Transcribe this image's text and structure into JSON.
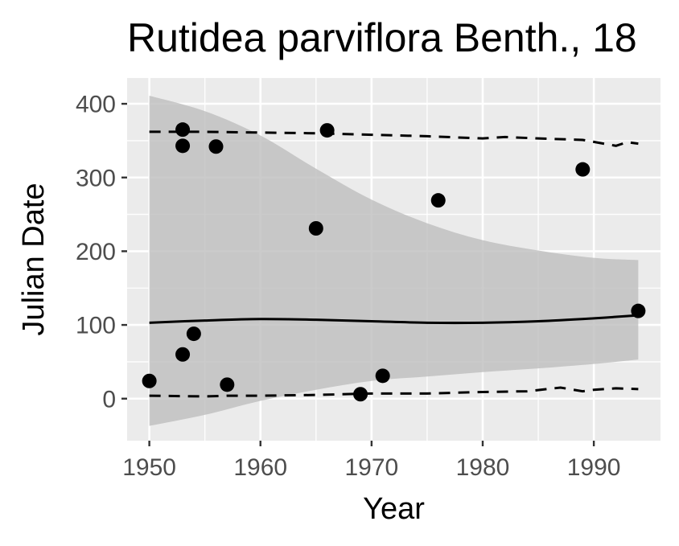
{
  "chart_data": {
    "type": "scatter",
    "title": "Rutidea parviflora Benth., 18",
    "xlabel": "Year",
    "ylabel": "Julian Date",
    "xlim": [
      1948.0,
      1996.0
    ],
    "ylim": [
      -57,
      435
    ],
    "x_ticks": [
      1950,
      1960,
      1970,
      1980,
      1990
    ],
    "x_tick_labels": [
      "1950",
      "1960",
      "1970",
      "1980",
      "1990"
    ],
    "y_ticks": [
      0,
      100,
      200,
      300,
      400
    ],
    "y_tick_labels": [
      "0",
      "100",
      "200",
      "300",
      "400"
    ],
    "grid": true,
    "legend": "none",
    "points": [
      {
        "x": 1950,
        "y": 24
      },
      {
        "x": 1953,
        "y": 365
      },
      {
        "x": 1953,
        "y": 343
      },
      {
        "x": 1953,
        "y": 60
      },
      {
        "x": 1954,
        "y": 88
      },
      {
        "x": 1956,
        "y": 342
      },
      {
        "x": 1957,
        "y": 19
      },
      {
        "x": 1965,
        "y": 231
      },
      {
        "x": 1966,
        "y": 364
      },
      {
        "x": 1969,
        "y": 6
      },
      {
        "x": 1971,
        "y": 31
      },
      {
        "x": 1976,
        "y": 269
      },
      {
        "x": 1989,
        "y": 311
      },
      {
        "x": 1994,
        "y": 119
      }
    ],
    "fit_line": [
      {
        "x": 1950,
        "y": 103
      },
      {
        "x": 1955,
        "y": 106
      },
      {
        "x": 1960,
        "y": 108
      },
      {
        "x": 1965,
        "y": 107
      },
      {
        "x": 1970,
        "y": 105
      },
      {
        "x": 1975,
        "y": 103
      },
      {
        "x": 1980,
        "y": 103
      },
      {
        "x": 1985,
        "y": 105
      },
      {
        "x": 1990,
        "y": 109
      },
      {
        "x": 1994,
        "y": 113
      }
    ],
    "ribbon": [
      {
        "x": 1950,
        "upper": 411,
        "lower": -37
      },
      {
        "x": 1955,
        "upper": 390,
        "lower": -22
      },
      {
        "x": 1960,
        "upper": 357,
        "lower": -3
      },
      {
        "x": 1965,
        "upper": 312,
        "lower": 12
      },
      {
        "x": 1970,
        "upper": 270,
        "lower": 24
      },
      {
        "x": 1975,
        "upper": 238,
        "lower": 30
      },
      {
        "x": 1980,
        "upper": 215,
        "lower": 36
      },
      {
        "x": 1985,
        "upper": 201,
        "lower": 41
      },
      {
        "x": 1990,
        "upper": 191,
        "lower": 47
      },
      {
        "x": 1994,
        "upper": 188,
        "lower": 53
      }
    ],
    "upper_dashed": [
      {
        "x": 1950,
        "y": 362
      },
      {
        "x": 1955,
        "y": 362
      },
      {
        "x": 1960,
        "y": 361
      },
      {
        "x": 1965,
        "y": 360
      },
      {
        "x": 1970,
        "y": 358
      },
      {
        "x": 1975,
        "y": 356
      },
      {
        "x": 1980,
        "y": 353
      },
      {
        "x": 1982,
        "y": 355
      },
      {
        "x": 1985,
        "y": 353
      },
      {
        "x": 1989,
        "y": 351
      },
      {
        "x": 1992,
        "y": 343
      },
      {
        "x": 1993,
        "y": 348
      },
      {
        "x": 1994,
        "y": 346
      }
    ],
    "lower_dashed": [
      {
        "x": 1950,
        "y": 4
      },
      {
        "x": 1955,
        "y": 3
      },
      {
        "x": 1957,
        "y": 4
      },
      {
        "x": 1960,
        "y": 4
      },
      {
        "x": 1965,
        "y": 5
      },
      {
        "x": 1970,
        "y": 7
      },
      {
        "x": 1975,
        "y": 7
      },
      {
        "x": 1980,
        "y": 9
      },
      {
        "x": 1984,
        "y": 10
      },
      {
        "x": 1987,
        "y": 15
      },
      {
        "x": 1989,
        "y": 10
      },
      {
        "x": 1990,
        "y": 12
      },
      {
        "x": 1992,
        "y": 14
      },
      {
        "x": 1994,
        "y": 13
      }
    ],
    "colors": {
      "panel": "#ebebeb",
      "grid": "#ffffff",
      "ribbon": "#bebebe",
      "line": "#000000",
      "point": "#000000",
      "tick": "#333333"
    }
  }
}
